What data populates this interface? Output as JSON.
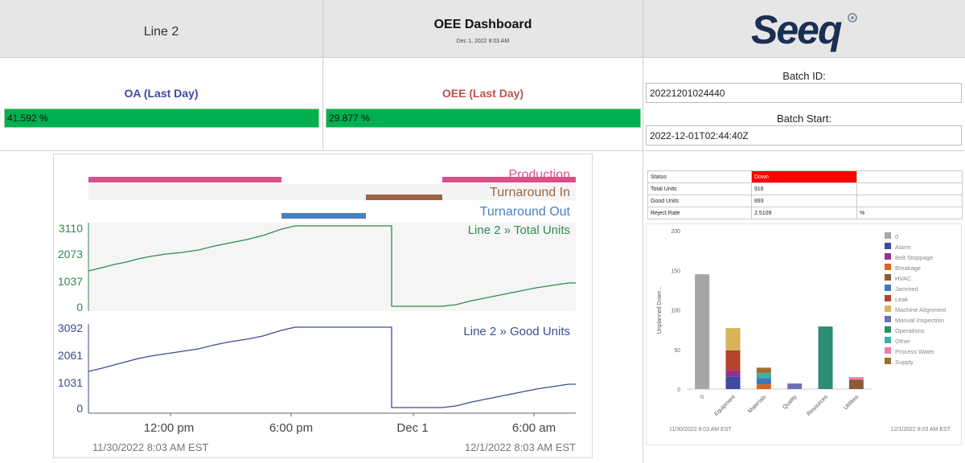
{
  "header": {
    "line": "Line 2",
    "title": "OEE Dashboard",
    "date": "Dec 1, 2022 8:03 AM",
    "logo_text": "Seeq"
  },
  "kpis": {
    "oa": {
      "label": "OA (Last Day)",
      "value": "41.592 %",
      "percent": 41.592,
      "label_color": "#3f48a6"
    },
    "oee": {
      "label": "OEE (Last Day)",
      "value": "29.877 %",
      "percent": 29.877,
      "label_color": "#c0504d"
    },
    "bar_color": "#00b050"
  },
  "batch": {
    "id_label": "Batch ID:",
    "id_value": "20221201024440",
    "start_label": "Batch Start:",
    "start_value": "2022-12-01T02:44:40Z"
  },
  "trend": {
    "capsules": [
      {
        "name": "Production",
        "color": "#d9508a"
      },
      {
        "name": "Turnaround In",
        "color": "#9c6645"
      },
      {
        "name": "Turnaround Out",
        "color": "#4a7fbf"
      }
    ],
    "panes": [
      {
        "name": "Line 2 » Total Units",
        "color": "#2e8b50",
        "ticks": [
          "3110",
          "2073",
          "1037",
          "0"
        ]
      },
      {
        "name": "Line 2 » Good Units",
        "color": "#3a4d8f",
        "ticks": [
          "3092",
          "2061",
          "1031",
          "0"
        ]
      }
    ],
    "x_ticks": [
      "12:00 pm",
      "6:00 pm",
      "Dec 1",
      "6:00 am"
    ],
    "range_start": "11/30/2022 8:03 AM  EST",
    "range_end": "12/1/2022 8:03 AM  EST"
  },
  "status_table": {
    "rows": [
      {
        "label": "Status",
        "value": "Down",
        "unit": "",
        "highlight": "#ff0000"
      },
      {
        "label": "Total Units",
        "value": "916",
        "unit": ""
      },
      {
        "label": "Good Units",
        "value": "893",
        "unit": ""
      },
      {
        "label": "Reject Rate",
        "value": "2.5109",
        "unit": "%"
      }
    ]
  },
  "chart_data": {
    "type": "bar",
    "stacked": true,
    "ylabel": "Unplanned Down...",
    "ylim": [
      0,
      200
    ],
    "y_ticks": [
      "200",
      "150",
      "100",
      "50",
      "0"
    ],
    "categories": [
      "0",
      "Equipment",
      "Materials",
      "Quality",
      "Resources",
      "Utilities"
    ],
    "series": [
      {
        "name": "0",
        "color": "#a6a6a6",
        "values": [
          145,
          0,
          0,
          0,
          0,
          0
        ]
      },
      {
        "name": "Alarm",
        "color": "#3d4aa0",
        "values": [
          0,
          16,
          0,
          0,
          0,
          0
        ]
      },
      {
        "name": "Belt Stoppage",
        "color": "#9b2d8c",
        "values": [
          0,
          8,
          0,
          0,
          0,
          0
        ]
      },
      {
        "name": "Breakage",
        "color": "#d9641e",
        "values": [
          0,
          0,
          6,
          0,
          0,
          0
        ]
      },
      {
        "name": "HVAC",
        "color": "#8a5a3a",
        "values": [
          0,
          0,
          0,
          0,
          0,
          12
        ]
      },
      {
        "name": "Jammed",
        "color": "#3f78b9",
        "values": [
          0,
          0,
          8,
          0,
          0,
          0
        ]
      },
      {
        "name": "Leak",
        "color": "#b5432a",
        "values": [
          0,
          25,
          0,
          0,
          0,
          0
        ]
      },
      {
        "name": "Machine Alignment",
        "color": "#d8b35a",
        "values": [
          0,
          28,
          0,
          0,
          0,
          0
        ]
      },
      {
        "name": "Manual Inspection",
        "color": "#6d72b5",
        "values": [
          0,
          0,
          0,
          7,
          0,
          0
        ]
      },
      {
        "name": "Operations",
        "color": "#2d8c74",
        "values": [
          0,
          0,
          0,
          0,
          79,
          0
        ]
      },
      {
        "name": "Other",
        "color": "#37b3a6",
        "values": [
          0,
          0,
          6,
          0,
          0,
          0
        ]
      },
      {
        "name": "Process Water",
        "color": "#ef7ba6",
        "values": [
          0,
          0,
          0,
          0,
          0,
          3
        ]
      },
      {
        "name": "Supply",
        "color": "#a46b32",
        "values": [
          0,
          0,
          7,
          0,
          0,
          0
        ]
      }
    ],
    "range_start": "11/30/2022 8:03 AM  EST",
    "range_end": "12/1/2022 8:03 AM  EST"
  }
}
